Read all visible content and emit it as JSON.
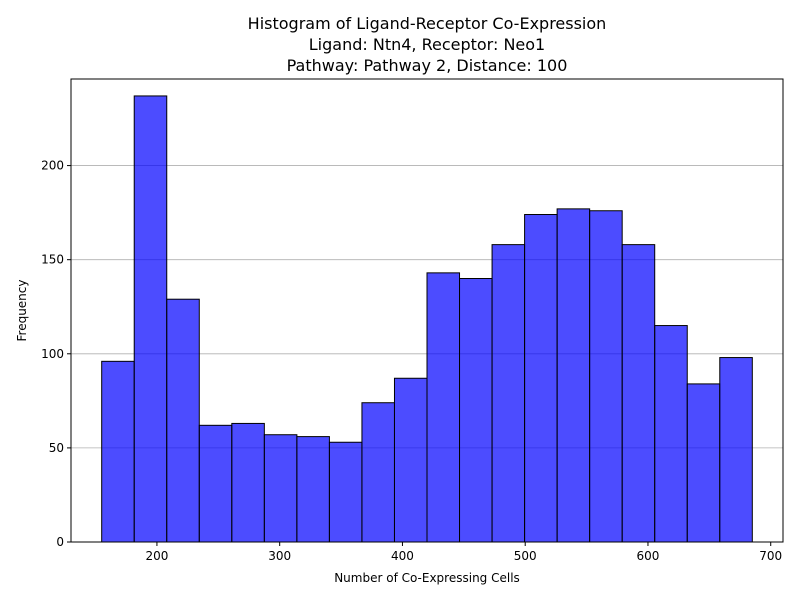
{
  "chart_data": {
    "type": "histogram",
    "title_lines": [
      "Histogram of Ligand-Receptor Co-Expression",
      "Ligand: Ntn4, Receptor: Neo1",
      "Pathway: Pathway 2, Distance: 100"
    ],
    "xlabel": "Number of Co-Expressing Cells",
    "ylabel": "Frequency",
    "xlim": [
      130,
      710
    ],
    "ylim": [
      0,
      246
    ],
    "x_ticks": [
      200,
      300,
      400,
      500,
      600,
      700
    ],
    "y_ticks": [
      0,
      50,
      100,
      150,
      200
    ],
    "grid": "y",
    "bar_color": "#0000ff",
    "bar_opacity": 0.7,
    "edge_color": "#000000",
    "bins": [
      {
        "x0": 155.0,
        "x1": 181.5,
        "count": 96
      },
      {
        "x0": 181.5,
        "x1": 208.0,
        "count": 237
      },
      {
        "x0": 208.0,
        "x1": 234.5,
        "count": 129
      },
      {
        "x0": 234.5,
        "x1": 261.0,
        "count": 62
      },
      {
        "x0": 261.0,
        "x1": 287.5,
        "count": 63
      },
      {
        "x0": 287.5,
        "x1": 314.0,
        "count": 57
      },
      {
        "x0": 314.0,
        "x1": 340.5,
        "count": 56
      },
      {
        "x0": 340.5,
        "x1": 367.0,
        "count": 53
      },
      {
        "x0": 367.0,
        "x1": 393.5,
        "count": 74
      },
      {
        "x0": 393.5,
        "x1": 420.0,
        "count": 87
      },
      {
        "x0": 420.0,
        "x1": 446.5,
        "count": 143
      },
      {
        "x0": 446.5,
        "x1": 473.0,
        "count": 140
      },
      {
        "x0": 473.0,
        "x1": 499.5,
        "count": 158
      },
      {
        "x0": 499.5,
        "x1": 526.0,
        "count": 174
      },
      {
        "x0": 526.0,
        "x1": 552.5,
        "count": 177
      },
      {
        "x0": 552.5,
        "x1": 579.0,
        "count": 176
      },
      {
        "x0": 579.0,
        "x1": 605.5,
        "count": 158
      },
      {
        "x0": 605.5,
        "x1": 632.0,
        "count": 115
      },
      {
        "x0": 632.0,
        "x1": 658.5,
        "count": 84
      },
      {
        "x0": 658.5,
        "x1": 685.0,
        "count": 98
      }
    ]
  }
}
